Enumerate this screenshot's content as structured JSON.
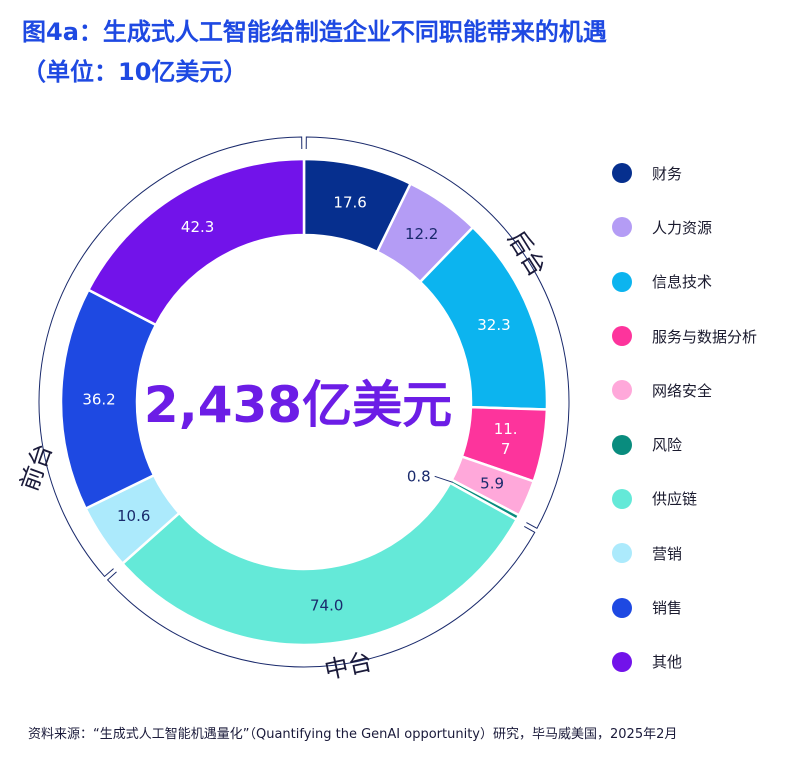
{
  "title": {
    "line1": "图4a：生成式人工智能给制造企业不同职能带来的机遇",
    "line2": "（单位：10亿美元）"
  },
  "center_total": "2,438亿美元",
  "group_labels": {
    "back": "后台",
    "middle": "中台",
    "front": "前台"
  },
  "source": "资料来源：“生成式人工智能机遇量化”（Quantifying the GenAI opportunity）研究，毕马威美国，2025年2月",
  "colors": {
    "title": "#1e49e2",
    "center_total": "#6c1de6",
    "bracket": "#1a2a6c"
  },
  "chart_data": {
    "type": "pie",
    "donut": true,
    "start": "top, clockwise",
    "legend_position": "right",
    "slices": [
      {
        "name": "财务",
        "value": 17.6,
        "label": "17.6",
        "color": "#062f8e"
      },
      {
        "name": "人力资源",
        "value": 12.2,
        "label": "12.2",
        "color": "#b49cf5"
      },
      {
        "name": "信息技术",
        "value": 32.3,
        "label": "32.3",
        "color": "#0cb4ef"
      },
      {
        "name": "服务与数据分析",
        "value": 11.7,
        "label": "11.\n7",
        "color": "#fd349c"
      },
      {
        "name": "网络安全",
        "value": 5.9,
        "label": "5.9",
        "color": "#ffa8da"
      },
      {
        "name": "风险",
        "value": 0.8,
        "label": "0.8",
        "color": "#098c7e"
      },
      {
        "name": "供应链",
        "value": 74.0,
        "label": "74.0",
        "color": "#64e9d8"
      },
      {
        "name": "营销",
        "value": 10.6,
        "label": "10.6",
        "color": "#aceafc"
      },
      {
        "name": "销售",
        "value": 36.2,
        "label": "36.2",
        "color": "#1e49e2"
      },
      {
        "name": "其他",
        "value": 42.3,
        "label": "42.3",
        "color": "#7213ea"
      }
    ]
  }
}
